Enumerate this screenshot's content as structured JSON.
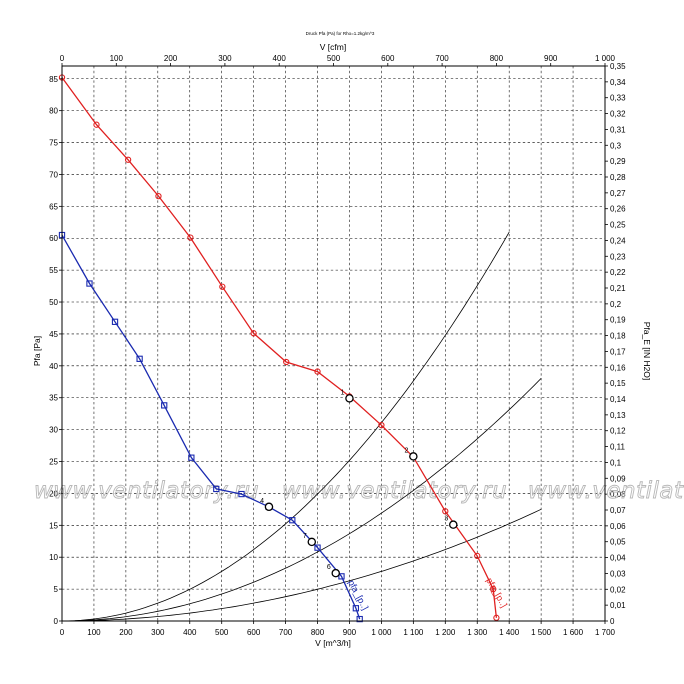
{
  "chart_data": {
    "type": "line",
    "title": "Druck Pfa (Pa) for Rho=1.2kg/m^3",
    "x_bottom": {
      "label": "V [m^3/h]",
      "range": [
        0,
        1700
      ],
      "ticks": [
        "0",
        "100",
        "200",
        "300",
        "400",
        "500",
        "600",
        "700",
        "800",
        "900",
        "1 000",
        "1 100",
        "1 200",
        "1 300",
        "1 400",
        "1 500",
        "1 600",
        "1 700"
      ]
    },
    "x_top": {
      "label": "V [cfm]",
      "range": [
        0,
        1000
      ],
      "ticks": [
        "0",
        "100",
        "200",
        "300",
        "400",
        "500",
        "600",
        "700",
        "800",
        "900",
        "1 000"
      ]
    },
    "y_left": {
      "label": "Pfa [Pa]",
      "range": [
        0,
        87
      ],
      "ticks": [
        "0",
        "5",
        "10",
        "15",
        "20",
        "25",
        "30",
        "35",
        "40",
        "45",
        "50",
        "55",
        "60",
        "65",
        "70",
        "75",
        "80",
        "85"
      ]
    },
    "y_right": {
      "label": "Pfa_E [IN H2O]",
      "range": [
        0,
        0.35
      ],
      "ticks": [
        "0",
        "0,01",
        "0,02",
        "0,03",
        "0,04",
        "0,05",
        "0,06",
        "0,07",
        "0,08",
        "0,09",
        "0,1",
        "0,11",
        "0,12",
        "0,13",
        "0,14",
        "0,15",
        "0,16",
        "0,17",
        "0,18",
        "0,19",
        "0,2",
        "0,21",
        "0,22",
        "0,23",
        "0,24",
        "0,25",
        "0,26",
        "0,27",
        "0,28",
        "0,29",
        "0,3",
        "0,31",
        "0,32",
        "0,33",
        "0,34",
        "0,35"
      ]
    },
    "grid": true,
    "series": [
      {
        "name": "pfa_[p..]",
        "color": "#e02020",
        "marker": "circle",
        "points": [
          [
            0,
            85.2
          ],
          [
            108,
            77.8
          ],
          [
            207,
            72.3
          ],
          [
            302,
            66.6
          ],
          [
            402,
            60.1
          ],
          [
            502,
            52.4
          ],
          [
            600,
            45.1
          ],
          [
            702,
            40.6
          ],
          [
            800,
            39.1
          ],
          [
            900,
            35.2
          ],
          [
            1000,
            30.7
          ],
          [
            1100,
            25.7
          ],
          [
            1200,
            17.2
          ],
          [
            1300,
            10.2
          ],
          [
            1350,
            5.0
          ],
          [
            1360,
            0.5
          ]
        ]
      },
      {
        "name": "pfa_[p..]",
        "color": "#1a2ab0",
        "marker": "square",
        "points": [
          [
            0,
            60.5
          ],
          [
            86,
            52.9
          ],
          [
            166,
            46.9
          ],
          [
            243,
            41.1
          ],
          [
            320,
            33.8
          ],
          [
            405,
            25.6
          ],
          [
            483,
            20.7
          ],
          [
            562,
            19.9
          ],
          [
            647,
            17.9
          ],
          [
            721,
            15.8
          ],
          [
            800,
            11.5
          ],
          [
            875,
            7.0
          ],
          [
            920,
            2.0
          ],
          [
            932,
            0.3
          ]
        ]
      }
    ],
    "system_curves": [
      {
        "k": 3.11e-05,
        "end": [
          1400,
          80.9
        ]
      },
      {
        "k": 1.69e-05,
        "end": [
          1500,
          43.0
        ]
      },
      {
        "k": 7.78e-06,
        "end": [
          1500,
          21.7
        ]
      }
    ],
    "operating_points": [
      {
        "label": "1",
        "x": 900,
        "y": 34.9
      },
      {
        "label": "2",
        "x": 1100,
        "y": 25.8
      },
      {
        "label": "3",
        "x": 1225,
        "y": 15.1
      },
      {
        "label": "4",
        "x": 648,
        "y": 17.9
      },
      {
        "label": "7",
        "x": 782,
        "y": 12.4
      },
      {
        "label": "6",
        "x": 857,
        "y": 7.5
      }
    ],
    "series_labels": [
      "pfa_[p..]",
      "pfa_[p..]"
    ],
    "watermark": "www.ventilatory.ru"
  }
}
